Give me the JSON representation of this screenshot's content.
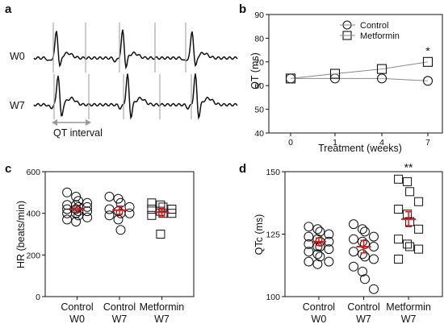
{
  "chart_data": [
    {
      "panel": "a",
      "type": "line",
      "description_labels": [
        "W0",
        "W7"
      ],
      "annotation": "QT interval"
    },
    {
      "panel": "b",
      "type": "line",
      "xlabel": "Treatment (weeks)",
      "ylabel": "QT (ms)",
      "x_categories": [
        "0",
        "1",
        "4",
        "7"
      ],
      "ylim": [
        40,
        90
      ],
      "yticks": [
        40,
        50,
        60,
        70,
        80,
        90
      ],
      "legend_position": "top-right",
      "series": [
        {
          "name": "Control",
          "marker": "circle",
          "values": [
            63,
            63,
            63,
            62
          ]
        },
        {
          "name": "Metformin",
          "marker": "square",
          "values": [
            63,
            65,
            67,
            70
          ]
        }
      ],
      "annotations": [
        {
          "x": "7",
          "text": "*"
        }
      ]
    },
    {
      "panel": "c",
      "type": "scatter",
      "ylabel": "HR (beats/min)",
      "ylim": [
        0,
        600
      ],
      "yticks": [
        0,
        200,
        400,
        600
      ],
      "groups": [
        {
          "label_top": "Control",
          "label_bottom": "W0",
          "marker": "circle",
          "mean": 420,
          "sem": 15,
          "values": [
            500,
            480,
            460,
            450,
            440,
            440,
            430,
            430,
            420,
            420,
            410,
            410,
            400,
            400,
            390,
            380,
            370,
            360
          ]
        },
        {
          "label_top": "Control",
          "label_bottom": "W7",
          "marker": "circle",
          "mean": 415,
          "sem": 20,
          "values": [
            480,
            470,
            450,
            430,
            420,
            410,
            400,
            400,
            390,
            370,
            320
          ]
        },
        {
          "label_top": "Metformin",
          "label_bottom": "W7",
          "marker": "square",
          "mean": 405,
          "sem": 18,
          "values": [
            450,
            440,
            430,
            420,
            420,
            410,
            400,
            400,
            390,
            300
          ]
        }
      ]
    },
    {
      "panel": "d",
      "type": "scatter",
      "ylabel": "QTc (ms)",
      "ylim": [
        100,
        150
      ],
      "yticks": [
        100,
        125,
        150
      ],
      "groups": [
        {
          "label_top": "Control",
          "label_bottom": "W0",
          "marker": "circle",
          "mean": 122,
          "sem": 1.5,
          "values": [
            128,
            127,
            126,
            125,
            124,
            123,
            122,
            122,
            121,
            120,
            120,
            119,
            118,
            117,
            116,
            114,
            114,
            113
          ]
        },
        {
          "label_top": "Control",
          "label_bottom": "W7",
          "marker": "circle",
          "mean": 120,
          "sem": 2.5,
          "values": [
            129,
            127,
            126,
            124,
            123,
            122,
            121,
            120,
            118,
            117,
            116,
            115,
            112,
            110,
            107,
            103
          ]
        },
        {
          "label_top": "Metformin",
          "label_bottom": "W7",
          "marker": "square",
          "mean": 131,
          "sem": 3,
          "values": [
            147,
            146,
            142,
            138,
            135,
            133,
            130,
            127,
            123,
            121,
            120,
            119,
            115
          ]
        }
      ],
      "annotations": [
        {
          "group": 2,
          "text": "**"
        }
      ]
    }
  ]
}
